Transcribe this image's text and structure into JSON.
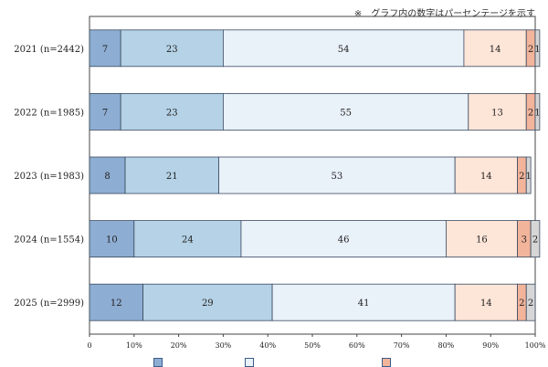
{
  "note": "※　グラフ内の数字はパーセンテージを示す",
  "chart_data": {
    "type": "bar",
    "orientation": "horizontal",
    "stacked": true,
    "categories": [
      "2021 (n=2442)",
      "2022 (n=1985)",
      "2023 (n=1983)",
      "2024 (n=1554)",
      "2025 (n=2999)"
    ],
    "series": [
      {
        "color": "#8eadd3",
        "values": [
          7,
          7,
          8,
          10,
          12
        ]
      },
      {
        "color": "#b5d2e6",
        "values": [
          23,
          23,
          21,
          24,
          29
        ]
      },
      {
        "color": "#e9f1f9",
        "values": [
          54,
          55,
          53,
          46,
          41
        ]
      },
      {
        "color": "#fde5d8",
        "values": [
          14,
          13,
          14,
          16,
          14
        ]
      },
      {
        "color": "#f2b49a",
        "values": [
          2,
          2,
          2,
          3,
          2
        ]
      },
      {
        "color": "#d6d6d6",
        "values": [
          1,
          1,
          1,
          2,
          2
        ]
      }
    ],
    "xlim": [
      0,
      100
    ],
    "xticks": [
      "0",
      "10%",
      "20%",
      "30%",
      "40%",
      "50%",
      "60%",
      "70%",
      "80%",
      "90%",
      "100%"
    ],
    "data_labels": true
  }
}
